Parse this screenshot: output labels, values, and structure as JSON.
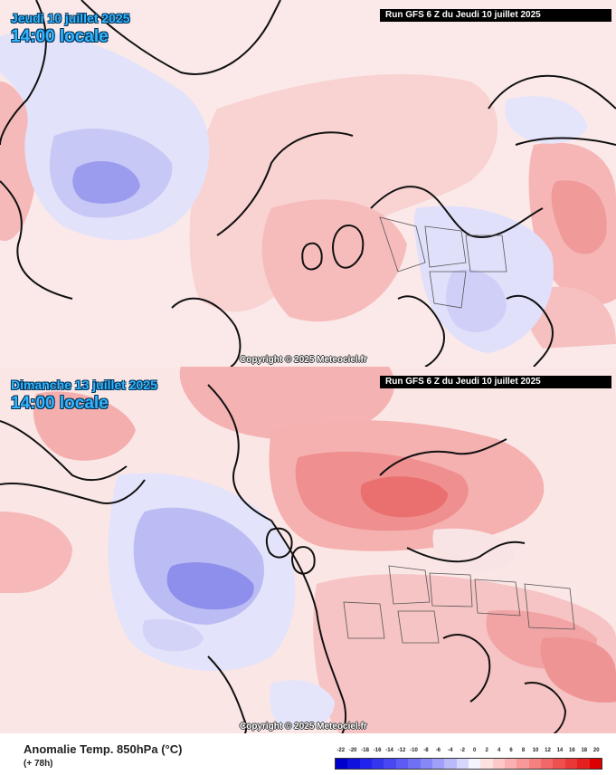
{
  "panels": [
    {
      "date_line1": "Jeudi 10 juillet 2025",
      "date_line2": "14:00 locale",
      "run": "Run GFS 6 Z du Jeudi 10 juillet 2025",
      "copyright": "Copyright © 2025 Meteociel.fr"
    },
    {
      "date_line1": "Dimanche 13 juillet 2025",
      "date_line2": "14:00 locale",
      "run": "Run GFS 6 Z du Jeudi 10 juillet 2025",
      "copyright": "Copyright © 2025 Meteociel.fr"
    }
  ],
  "footer": {
    "title": "Anomalie Temp. 850hPa (°C)",
    "forecast": "(+ 78h)"
  },
  "legend": {
    "ticks": [
      "-22",
      "-20",
      "-18",
      "-16",
      "-14",
      "-12",
      "-10",
      "-8",
      "-6",
      "-4",
      "-2",
      "0",
      "2",
      "4",
      "6",
      "8",
      "10",
      "12",
      "14",
      "16",
      "18",
      "20"
    ],
    "colors": [
      "#0000cc",
      "#1111dd",
      "#2222ee",
      "#3535f0",
      "#4848f2",
      "#5c5cf4",
      "#7070f5",
      "#8787f6",
      "#a0a0f8",
      "#babafa",
      "#d6d6fc",
      "#f4f4ff",
      "#fde0e0",
      "#fcc8c8",
      "#fab0b0",
      "#f89898",
      "#f58080",
      "#f26868",
      "#ee5050",
      "#ea3838",
      "#e52020",
      "#dd0000"
    ]
  }
}
